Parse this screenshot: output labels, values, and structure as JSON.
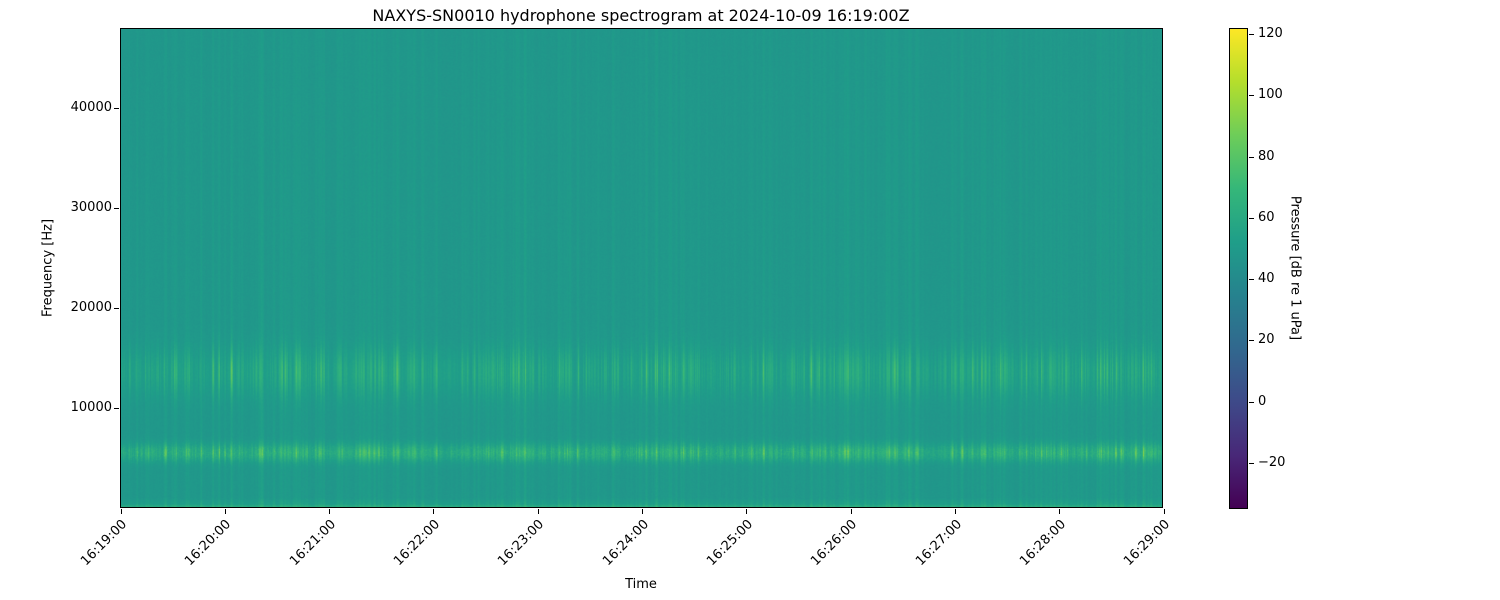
{
  "figure": {
    "title": "NAXYS-SN0010 hydrophone spectrogram at 2024-10-09 16:19:00Z"
  },
  "chart_data": {
    "type": "heatmap",
    "subtype": "spectrogram",
    "title": "NAXYS-SN0010 hydrophone spectrogram at 2024-10-09 16:19:00Z",
    "xlabel": "Time",
    "ylabel": "Frequency [Hz]",
    "x_tick_labels": [
      "16:19:00",
      "16:20:00",
      "16:21:00",
      "16:22:00",
      "16:23:00",
      "16:24:00",
      "16:25:00",
      "16:26:00",
      "16:27:00",
      "16:28:00",
      "16:29:00"
    ],
    "y_ticks": [
      {
        "value": 10000,
        "label": "10000"
      },
      {
        "value": 20000,
        "label": "20000"
      },
      {
        "value": 30000,
        "label": "30000"
      },
      {
        "value": 40000,
        "label": "40000"
      }
    ],
    "ylim": [
      0,
      48000
    ],
    "grid": false,
    "colorbar": {
      "label": "Pressure [dB re 1 uPa]",
      "ticks": [
        {
          "value": 120,
          "label": "120"
        },
        {
          "value": 100,
          "label": "100"
        },
        {
          "value": 80,
          "label": "80"
        },
        {
          "value": 60,
          "label": "60"
        },
        {
          "value": 40,
          "label": "40"
        },
        {
          "value": 20,
          "label": "20"
        },
        {
          "value": 0,
          "label": "0"
        },
        {
          "value": -20,
          "label": "−20"
        }
      ],
      "vmin": -35,
      "vmax": 122,
      "colormap": "viridis",
      "colormap_stops": [
        "#440154",
        "#482878",
        "#3e4a89",
        "#31688e",
        "#26828e",
        "#1f9e89",
        "#35b779",
        "#6dcd59",
        "#b4de2c",
        "#fde725"
      ]
    },
    "features": {
      "ambient_level_db": 47,
      "background_color": "#21958d",
      "tonal_band": {
        "center_hz": 5500,
        "width_hz": 1200,
        "peak_db": 74
      },
      "broadband_band": {
        "low_hz": 11500,
        "high_hz": 16300,
        "center_hz": 13600,
        "level_db": 56
      },
      "low_freq_band": {
        "low_hz": 0,
        "high_hz": 1000,
        "level_db": 58
      },
      "texture": "dense vertical broadband transient striations across all frequencies"
    }
  }
}
